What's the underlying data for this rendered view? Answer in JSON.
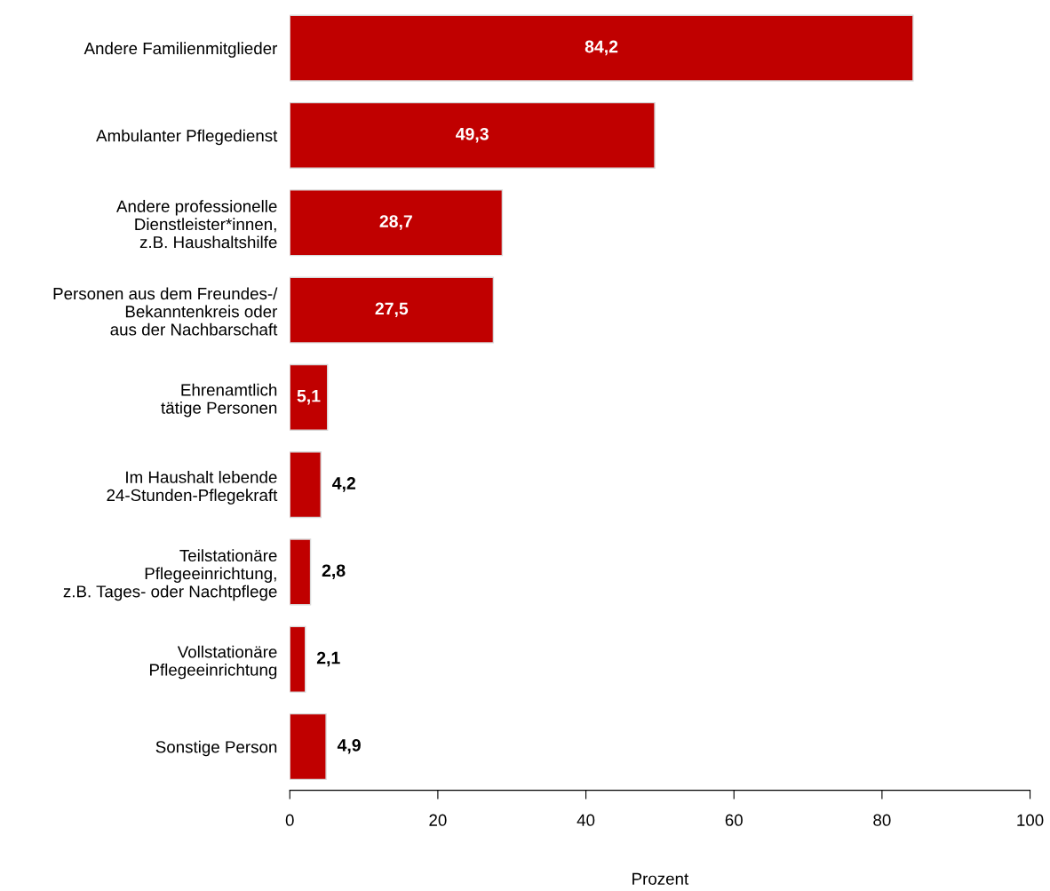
{
  "chart_data": {
    "type": "bar",
    "orientation": "horizontal",
    "xlabel": "Prozent",
    "categories": [
      "Andere Familienmitglieder",
      "Ambulanter Pflegedienst",
      "Andere professionelle\nDienstleister*innen,\nz.B. Haushaltshilfe",
      "Personen aus dem Freundes-/\nBekanntenkreis oder\naus der Nachbarschaft",
      "Ehrenamtlich\ntätige Personen",
      "Im Haushalt lebende\n24-Stunden-Pflegekraft",
      "Teilstationäre\nPflegeeinrichtung,\nz.B. Tages- oder Nachtpflege",
      "Vollstationäre\nPflegeeinrichtung",
      "Sonstige Person"
    ],
    "values": [
      84.2,
      49.3,
      28.7,
      27.5,
      5.1,
      4.2,
      2.8,
      2.1,
      4.9
    ],
    "value_labels": [
      "84,2",
      "49,3",
      "28,7",
      "27,5",
      "5,1",
      "4,2",
      "2,8",
      "2,1",
      "4,9"
    ],
    "color": "#c00000",
    "xlim": [
      0,
      100
    ],
    "xticks": [
      0,
      20,
      40,
      60,
      80,
      100
    ],
    "grid": false,
    "legend": false
  }
}
